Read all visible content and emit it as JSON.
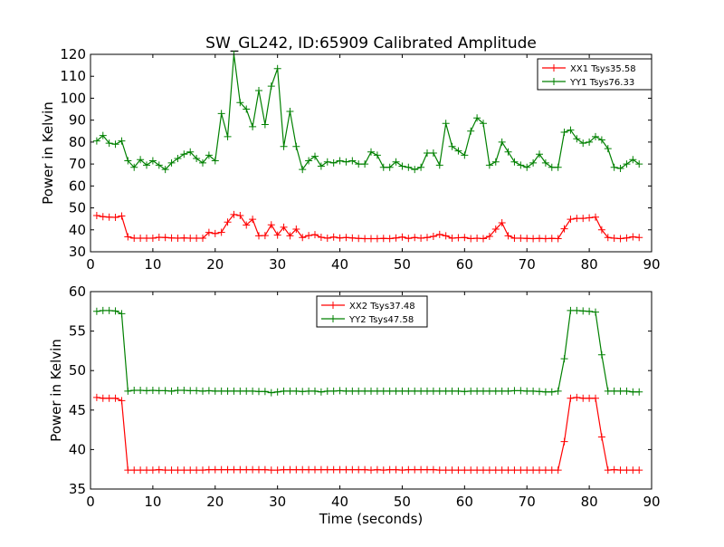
{
  "figure": {
    "title": "SW_GL242, ID:65909 Calibrated Amplitude",
    "xlabel": "Time (seconds)"
  },
  "chart_data": [
    {
      "type": "line",
      "ylabel": "Power in Kelvin",
      "xlim": [
        0,
        90
      ],
      "ylim": [
        30,
        120
      ],
      "xticks": [
        0,
        10,
        20,
        30,
        40,
        50,
        60,
        70,
        80,
        90
      ],
      "yticks": [
        30,
        40,
        50,
        60,
        70,
        80,
        90,
        100,
        110,
        120
      ],
      "legend": "top-right",
      "grid": false,
      "x": [
        1,
        2,
        3,
        4,
        5,
        6,
        7,
        8,
        9,
        10,
        11,
        12,
        13,
        14,
        15,
        16,
        17,
        18,
        19,
        20,
        21,
        22,
        23,
        24,
        25,
        26,
        27,
        28,
        29,
        30,
        31,
        32,
        33,
        34,
        35,
        36,
        37,
        38,
        39,
        40,
        41,
        42,
        43,
        44,
        45,
        46,
        47,
        48,
        49,
        50,
        51,
        52,
        53,
        54,
        55,
        56,
        57,
        58,
        59,
        60,
        61,
        62,
        63,
        64,
        65,
        66,
        67,
        68,
        69,
        70,
        71,
        72,
        73,
        74,
        75,
        76,
        77,
        78,
        79,
        80,
        81,
        82,
        83,
        84,
        85,
        86,
        87,
        88
      ],
      "series": [
        {
          "name": "XX1 Tsys35.58",
          "color": "#ff0000",
          "values": [
            46.5,
            46,
            45.8,
            45.7,
            46.3,
            36.8,
            36.2,
            36.2,
            36.2,
            36.2,
            36.6,
            36.5,
            36.3,
            36.2,
            36.3,
            36.2,
            36.2,
            36.2,
            38.8,
            38.3,
            38.9,
            43.5,
            47,
            46.5,
            42.2,
            44.8,
            37.3,
            37.4,
            42.3,
            37.6,
            41.2,
            37.3,
            40.3,
            36.5,
            37.4,
            37.8,
            36.6,
            36.2,
            36.7,
            36.3,
            36.5,
            36.3,
            36.1,
            36,
            36,
            36,
            36.1,
            36,
            36.3,
            36.7,
            36.1,
            36.5,
            36.2,
            36.5,
            37,
            37.9,
            37.3,
            36.2,
            36.4,
            36.5,
            36,
            36.2,
            36,
            37,
            40.3,
            43.2,
            37.3,
            36.2,
            36.2,
            36.1,
            36,
            36.1,
            36,
            36.1,
            36,
            40.5,
            44.8,
            45.2,
            45.2,
            45.5,
            45.8,
            40,
            36.5,
            36.2,
            36,
            36.3,
            36.8,
            36.5
          ]
        },
        {
          "name": "YY1 Tsys76.33",
          "color": "#008000",
          "values": [
            80.5,
            83,
            79.5,
            79,
            80.5,
            71.5,
            68.5,
            72,
            69.5,
            71.5,
            69.5,
            67.5,
            70.5,
            72.5,
            74.5,
            75.5,
            72.5,
            70.5,
            74,
            71.5,
            93,
            82.5,
            120,
            98,
            95,
            87,
            103.5,
            88,
            105.5,
            113.5,
            78,
            94,
            78,
            67.5,
            71.5,
            73.5,
            69,
            71,
            70.5,
            71.5,
            71,
            71.5,
            70,
            70,
            75.5,
            74,
            68.5,
            68.5,
            71,
            69,
            68.5,
            67.5,
            68.5,
            75,
            75,
            69.5,
            88.5,
            78,
            76,
            74,
            85,
            91,
            88.5,
            69.5,
            71,
            80,
            75.5,
            71,
            69.5,
            68.5,
            70.5,
            74.5,
            70.5,
            68.5,
            68.5,
            84.5,
            85.5,
            81.5,
            79.5,
            80,
            82.5,
            81,
            77,
            68.5,
            68,
            70,
            72,
            70
          ]
        }
      ]
    },
    {
      "type": "line",
      "ylabel": "Power in Kelvin",
      "xlim": [
        0,
        90
      ],
      "ylim": [
        35,
        60
      ],
      "xticks": [
        0,
        10,
        20,
        30,
        40,
        50,
        60,
        70,
        80,
        90
      ],
      "yticks": [
        35,
        40,
        45,
        50,
        55,
        60
      ],
      "legend": "top-center",
      "grid": false,
      "x": [
        1,
        2,
        3,
        4,
        5,
        6,
        7,
        8,
        9,
        10,
        11,
        12,
        13,
        14,
        15,
        16,
        17,
        18,
        19,
        20,
        21,
        22,
        23,
        24,
        25,
        26,
        27,
        28,
        29,
        30,
        31,
        32,
        33,
        34,
        35,
        36,
        37,
        38,
        39,
        40,
        41,
        42,
        43,
        44,
        45,
        46,
        47,
        48,
        49,
        50,
        51,
        52,
        53,
        54,
        55,
        56,
        57,
        58,
        59,
        60,
        61,
        62,
        63,
        64,
        65,
        66,
        67,
        68,
        69,
        70,
        71,
        72,
        73,
        74,
        75,
        76,
        77,
        78,
        79,
        80,
        81,
        82,
        83,
        84,
        85,
        86,
        87,
        88
      ],
      "series": [
        {
          "name": "XX2 Tsys37.48",
          "color": "#ff0000",
          "values": [
            46.6,
            46.5,
            46.5,
            46.5,
            46.2,
            37.4,
            37.4,
            37.4,
            37.4,
            37.4,
            37.45,
            37.4,
            37.4,
            37.4,
            37.4,
            37.4,
            37.4,
            37.4,
            37.45,
            37.45,
            37.45,
            37.45,
            37.45,
            37.45,
            37.45,
            37.45,
            37.45,
            37.45,
            37.4,
            37.4,
            37.45,
            37.45,
            37.45,
            37.45,
            37.45,
            37.45,
            37.45,
            37.45,
            37.45,
            37.45,
            37.45,
            37.45,
            37.45,
            37.45,
            37.4,
            37.45,
            37.4,
            37.45,
            37.45,
            37.4,
            37.45,
            37.45,
            37.45,
            37.45,
            37.45,
            37.4,
            37.4,
            37.4,
            37.4,
            37.4,
            37.4,
            37.4,
            37.4,
            37.4,
            37.4,
            37.4,
            37.4,
            37.4,
            37.4,
            37.4,
            37.4,
            37.4,
            37.4,
            37.4,
            37.4,
            41,
            46.5,
            46.6,
            46.5,
            46.5,
            46.5,
            41.6,
            37.4,
            37.45,
            37.4,
            37.4,
            37.4,
            37.4
          ]
        },
        {
          "name": "YY2 Tsys47.58",
          "color": "#008000",
          "values": [
            57.5,
            57.6,
            57.6,
            57.55,
            57.2,
            47.4,
            47.5,
            47.5,
            47.45,
            47.5,
            47.45,
            47.45,
            47.4,
            47.5,
            47.5,
            47.45,
            47.45,
            47.4,
            47.45,
            47.4,
            47.4,
            47.4,
            47.4,
            47.4,
            47.4,
            47.4,
            47.35,
            47.35,
            47.2,
            47.3,
            47.4,
            47.4,
            47.4,
            47.35,
            47.4,
            47.4,
            47.3,
            47.4,
            47.4,
            47.45,
            47.4,
            47.4,
            47.4,
            47.4,
            47.4,
            47.4,
            47.4,
            47.4,
            47.4,
            47.4,
            47.4,
            47.4,
            47.4,
            47.4,
            47.4,
            47.4,
            47.4,
            47.4,
            47.4,
            47.35,
            47.4,
            47.4,
            47.4,
            47.4,
            47.4,
            47.4,
            47.4,
            47.45,
            47.45,
            47.4,
            47.4,
            47.35,
            47.3,
            47.3,
            47.4,
            51.5,
            57.6,
            57.6,
            57.55,
            57.5,
            57.4,
            52,
            47.4,
            47.4,
            47.4,
            47.4,
            47.3,
            47.3
          ]
        }
      ]
    }
  ]
}
